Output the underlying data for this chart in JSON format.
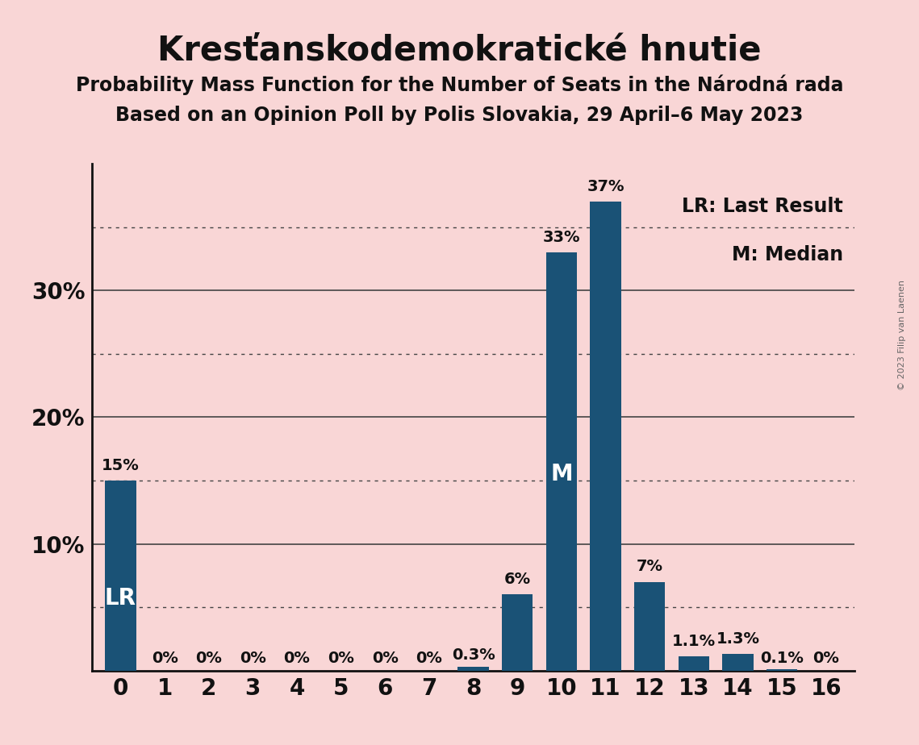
{
  "title": "Kresťanskodemokratické hnutie",
  "subtitle1": "Probability Mass Function for the Number of Seats in the Národná rada",
  "subtitle2": "Based on an Opinion Poll by Polis Slovakia, 29 April–6 May 2023",
  "copyright": "© 2023 Filip van Laenen",
  "categories": [
    0,
    1,
    2,
    3,
    4,
    5,
    6,
    7,
    8,
    9,
    10,
    11,
    12,
    13,
    14,
    15,
    16
  ],
  "values": [
    15,
    0,
    0,
    0,
    0,
    0,
    0,
    0,
    0.3,
    6,
    33,
    37,
    7,
    1.1,
    1.3,
    0.1,
    0
  ],
  "bar_color": "#1a5276",
  "background_color": "#f9d6d6",
  "last_result_idx": 0,
  "median_idx": 10,
  "label_LR": "LR",
  "label_M": "M",
  "legend_LR": "LR: Last Result",
  "legend_M": "M: Median",
  "ylim": [
    0,
    40
  ],
  "solid_grid": [
    10,
    20,
    30
  ],
  "dotted_grid": [
    5,
    15,
    25,
    35
  ],
  "ytick_positions": [
    10,
    20,
    30
  ],
  "ytick_labels": [
    "10%",
    "20%",
    "30%"
  ],
  "title_fontsize": 30,
  "subtitle_fontsize": 17,
  "axis_fontsize": 20,
  "bar_label_fontsize": 14,
  "legend_fontsize": 17,
  "inner_label_fontsize": 20
}
